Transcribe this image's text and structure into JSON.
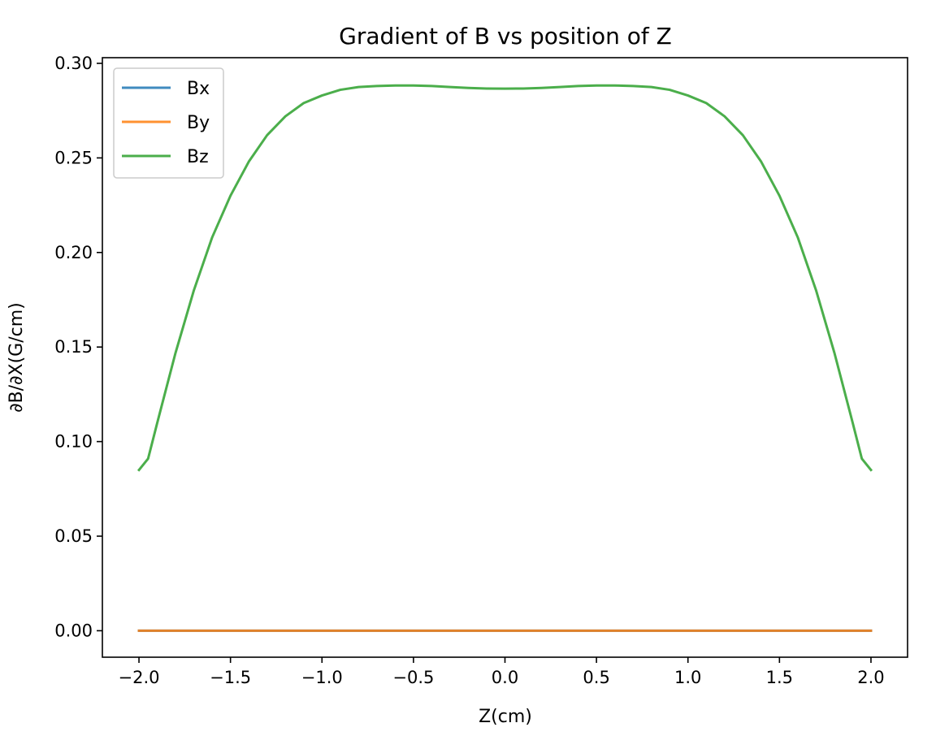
{
  "chart_data": {
    "type": "line",
    "title": "Gradient of B vs position of Z",
    "xlabel": "Z(cm)",
    "ylabel": "∂B/∂X(G/cm)",
    "xlim": [
      -2.2,
      2.2
    ],
    "ylim": [
      -0.014,
      0.303
    ],
    "xticks": [
      -2.0,
      -1.5,
      -1.0,
      -0.5,
      0.0,
      0.5,
      1.0,
      1.5,
      2.0
    ],
    "xtick_labels": [
      "−2.0",
      "−1.5",
      "−1.0",
      "−0.5",
      "0.0",
      "0.5",
      "1.0",
      "1.5",
      "2.0"
    ],
    "yticks": [
      0.0,
      0.05,
      0.1,
      0.15,
      0.2,
      0.25,
      0.3
    ],
    "ytick_labels": [
      "0.00",
      "0.05",
      "0.10",
      "0.15",
      "0.20",
      "0.25",
      "0.30"
    ],
    "grid": false,
    "legend": {
      "position": "top-left"
    },
    "x": [
      -2.0,
      -1.95,
      -1.9,
      -1.8,
      -1.7,
      -1.6,
      -1.5,
      -1.4,
      -1.3,
      -1.2,
      -1.1,
      -1.0,
      -0.9,
      -0.8,
      -0.7,
      -0.6,
      -0.5,
      -0.4,
      -0.3,
      -0.2,
      -0.1,
      0.0,
      0.1,
      0.2,
      0.3,
      0.4,
      0.5,
      0.6,
      0.7,
      0.8,
      0.9,
      1.0,
      1.1,
      1.2,
      1.3,
      1.4,
      1.5,
      1.6,
      1.7,
      1.8,
      1.9,
      1.95,
      2.0
    ],
    "series": [
      {
        "name": "Bx",
        "color": "#1f77b4",
        "values": [
          0,
          0,
          0,
          0,
          0,
          0,
          0,
          0,
          0,
          0,
          0,
          0,
          0,
          0,
          0,
          0,
          0,
          0,
          0,
          0,
          0,
          0,
          0,
          0,
          0,
          0,
          0,
          0,
          0,
          0,
          0,
          0,
          0,
          0,
          0,
          0,
          0,
          0,
          0,
          0,
          0,
          0,
          0
        ]
      },
      {
        "name": "By",
        "color": "#ff7f0e",
        "values": [
          0,
          0,
          0,
          0,
          0,
          0,
          0,
          0,
          0,
          0,
          0,
          0,
          0,
          0,
          0,
          0,
          0,
          0,
          0,
          0,
          0,
          0,
          0,
          0,
          0,
          0,
          0,
          0,
          0,
          0,
          0,
          0,
          0,
          0,
          0,
          0,
          0,
          0,
          0,
          0,
          0,
          0,
          0
        ]
      },
      {
        "name": "Bz",
        "color": "#2ca02c",
        "values": [
          0.085,
          0.091,
          0.11,
          0.147,
          0.18,
          0.208,
          0.23,
          0.248,
          0.262,
          0.272,
          0.279,
          0.283,
          0.286,
          0.2875,
          0.288,
          0.2883,
          0.2883,
          0.288,
          0.2875,
          0.287,
          0.2867,
          0.2866,
          0.2867,
          0.287,
          0.2875,
          0.288,
          0.2883,
          0.2883,
          0.288,
          0.2875,
          0.286,
          0.283,
          0.279,
          0.272,
          0.262,
          0.248,
          0.23,
          0.208,
          0.18,
          0.147,
          0.11,
          0.091,
          0.085
        ]
      }
    ]
  }
}
